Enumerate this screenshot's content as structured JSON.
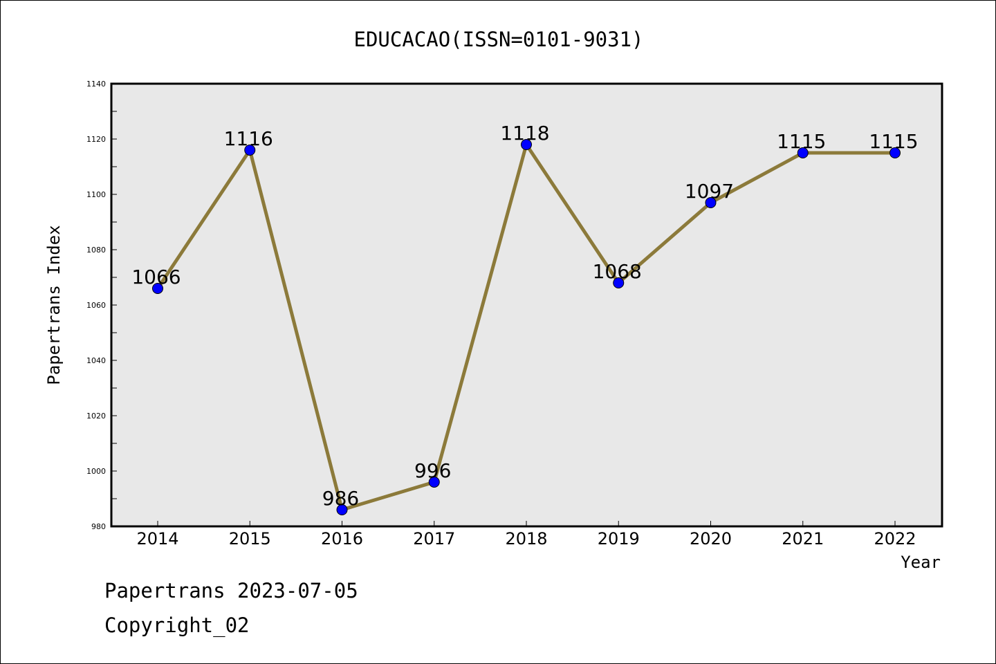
{
  "chart_data": {
    "type": "line",
    "title": "EDUCACAO(ISSN=0101-9031)",
    "xlabel": "Year",
    "ylabel": "Papertrans Index",
    "categories": [
      "2014",
      "2015",
      "2016",
      "2017",
      "2018",
      "2019",
      "2020",
      "2021",
      "2022"
    ],
    "values": [
      1066,
      1116,
      986,
      996,
      1118,
      1068,
      1097,
      1115,
      1115
    ],
    "data_labels": [
      "1066",
      "1116",
      "986",
      "996",
      "1118",
      "1068",
      "1097",
      "1115",
      "1115"
    ],
    "ylim": [
      980,
      1140
    ],
    "yticks": [
      "980",
      "1000",
      "1020",
      "1040",
      "1060",
      "1080",
      "1100",
      "1120",
      "1140"
    ],
    "grid": false,
    "legend": "none",
    "line_color": "#8c7a3a",
    "marker_color": "#0000ff",
    "plot_background": "#e8e8e8"
  },
  "footer": {
    "source_line": "Papertrans 2023-07-05",
    "copyright_line": "Copyright_02"
  }
}
